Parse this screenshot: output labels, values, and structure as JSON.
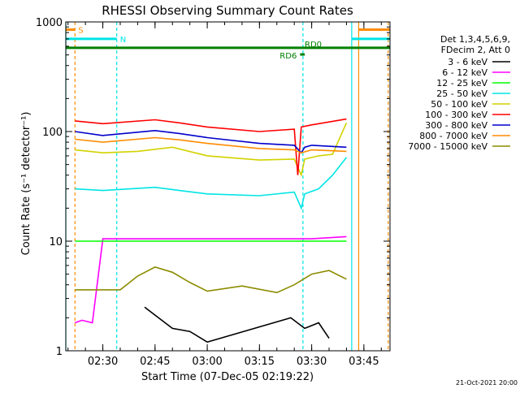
{
  "chart_data": {
    "type": "line",
    "title": "RHESSI Observing Summary Count Rates",
    "xlabel": "Start Time (07-Dec-05 02:19:22)",
    "ylabel": "Count Rate (s⁻¹ detector⁻¹)",
    "yscale": "log",
    "ylim": [
      1,
      1000
    ],
    "xlim": [
      "02:19:22",
      "03:52:30"
    ],
    "xticks": [
      "02:30",
      "02:45",
      "03:00",
      "03:15",
      "03:30",
      "03:45"
    ],
    "yticks": [
      "1",
      "10",
      "100",
      "1000"
    ],
    "grid": false,
    "legend_placement": "right",
    "legend_header": [
      "Det 1,3,4,5,6,9,",
      "FDecim 2, Att 0"
    ],
    "series": [
      {
        "name": "3 - 6 keV",
        "color": "#000000",
        "x": [
          "02:42",
          "02:50",
          "02:55",
          "03:00",
          "03:24",
          "03:28",
          "03:32",
          "03:35"
        ],
        "values": [
          2.5,
          1.6,
          1.5,
          1.2,
          2.0,
          1.6,
          1.8,
          1.3
        ]
      },
      {
        "name": "6 - 12 keV",
        "color": "#ff00ff",
        "x": [
          "02:22",
          "02:24",
          "02:27",
          "02:30",
          "02:45",
          "03:00",
          "03:15",
          "03:30",
          "03:40"
        ],
        "values": [
          1.8,
          1.9,
          1.8,
          10.5,
          10.5,
          10.5,
          10.5,
          10.5,
          11
        ]
      },
      {
        "name": "12 - 25 keV",
        "color": "#00ff00",
        "x": [
          "02:22",
          "02:30",
          "02:45",
          "03:00",
          "03:15",
          "03:27",
          "03:28",
          "03:30",
          "03:40"
        ],
        "values": [
          10,
          10,
          10,
          10,
          10,
          10,
          10,
          10,
          10
        ]
      },
      {
        "name": "25 - 50 keV",
        "color": "#00e5e5",
        "x": [
          "02:22",
          "02:30",
          "02:45",
          "02:52",
          "03:00",
          "03:15",
          "03:25",
          "03:27",
          "03:28",
          "03:32",
          "03:36",
          "03:40"
        ],
        "values": [
          30,
          29,
          31,
          29,
          27,
          26,
          28,
          20,
          27,
          30,
          40,
          58
        ]
      },
      {
        "name": "50 - 100 keV",
        "color": "#d2d200",
        "x": [
          "02:22",
          "02:30",
          "02:40",
          "02:50",
          "03:00",
          "03:15",
          "03:25",
          "03:27",
          "03:28",
          "03:32",
          "03:36",
          "03:40"
        ],
        "values": [
          68,
          64,
          66,
          72,
          60,
          55,
          56,
          40,
          56,
          60,
          62,
          120
        ]
      },
      {
        "name": "100 - 300 keV",
        "color": "#ff0000",
        "x": [
          "02:22",
          "02:30",
          "02:45",
          "02:52",
          "03:00",
          "03:15",
          "03:25",
          "03:26",
          "03:27",
          "03:30",
          "03:40"
        ],
        "values": [
          125,
          118,
          128,
          120,
          110,
          100,
          105,
          40,
          110,
          115,
          130
        ]
      },
      {
        "name": "300 - 800 keV",
        "color": "#0000cc",
        "x": [
          "02:22",
          "02:30",
          "02:45",
          "02:52",
          "03:00",
          "03:15",
          "03:25",
          "03:27",
          "03:28",
          "03:30",
          "03:40"
        ],
        "values": [
          100,
          92,
          102,
          96,
          88,
          78,
          75,
          64,
          72,
          75,
          72
        ]
      },
      {
        "name": "800 - 7000 keV",
        "color": "#ff8c00",
        "x": [
          "02:22",
          "02:30",
          "02:45",
          "02:52",
          "03:00",
          "03:15",
          "03:25",
          "03:27",
          "03:30",
          "03:40"
        ],
        "values": [
          85,
          80,
          88,
          84,
          78,
          70,
          68,
          64,
          68,
          66
        ]
      },
      {
        "name": "7000 - 15000 keV",
        "color": "#8c8c00",
        "x": [
          "02:22",
          "02:30",
          "02:35",
          "02:40",
          "02:45",
          "02:50",
          "02:55",
          "03:00",
          "03:10",
          "03:20",
          "03:25",
          "03:30",
          "03:35",
          "03:40"
        ],
        "values": [
          3.6,
          3.6,
          3.6,
          4.8,
          5.8,
          5.2,
          4.2,
          3.5,
          3.9,
          3.4,
          4.0,
          5.0,
          5.4,
          4.5
        ]
      }
    ],
    "annotations": [
      {
        "label": "S",
        "color": "#ff8c00",
        "x_range": [
          "02:19:22",
          "02:22:00"
        ],
        "level": 850
      },
      {
        "label": "N",
        "color": "#00e5e5",
        "x_range": [
          "02:19:22",
          "02:34:00"
        ],
        "level": 700
      },
      {
        "label": "RD0",
        "color": "#008000",
        "x_range": [
          "02:19:22",
          "03:52:30"
        ],
        "level": 580
      },
      {
        "label": "RD6",
        "color": "#008000",
        "x_range": [
          "03:26:40",
          "03:28:00"
        ],
        "level": 505
      },
      {
        "label": "",
        "color": "#00e5e5",
        "x_range": [
          "03:41:30",
          "03:52:30"
        ],
        "level": 700
      },
      {
        "label": "",
        "color": "#ff8c00",
        "x_range": [
          "03:43:30",
          "03:52:30"
        ],
        "level": 850
      }
    ],
    "markers": [
      {
        "color": "#00e5e5",
        "style": "solid",
        "x": "02:19:22"
      },
      {
        "color": "#ff8c00",
        "style": "dashed",
        "x": "02:22:00"
      },
      {
        "color": "#00e5e5",
        "style": "dashed",
        "x": "02:34:00"
      },
      {
        "color": "#00e5e5",
        "style": "dashed",
        "x": "03:27:30"
      },
      {
        "color": "#00e5e5",
        "style": "solid",
        "x": "03:41:30"
      },
      {
        "color": "#ff8c00",
        "style": "solid",
        "x": "03:43:30"
      },
      {
        "color": "#ff8c00",
        "style": "dashed",
        "x": "03:52:00"
      }
    ]
  },
  "footer_timestamp": "21-Oct-2021 20:00"
}
